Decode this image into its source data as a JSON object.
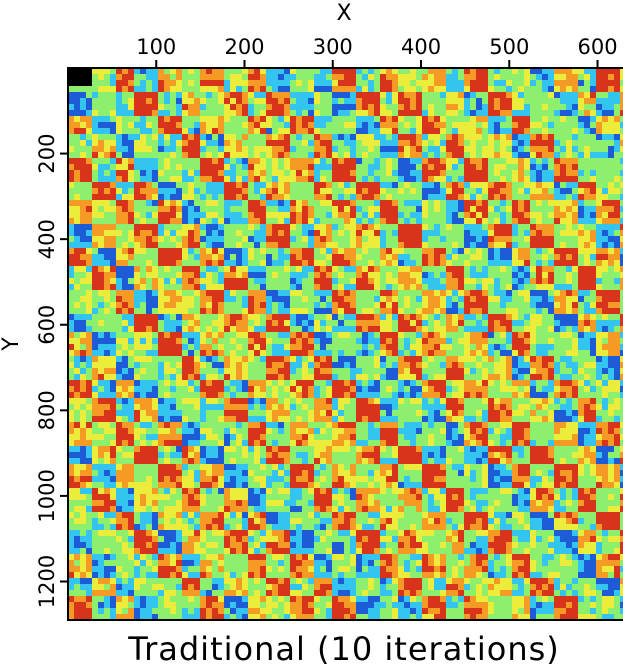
{
  "chart_data": {
    "type": "heatmap",
    "title": "Traditional (10 iterations)",
    "xlabel": "X",
    "ylabel": "Y",
    "x_axis_position": "top",
    "xlim": [
      0,
      630
    ],
    "ylim": [
      0,
      1290
    ],
    "y_direction": "downward",
    "x_ticks": [
      100,
      200,
      300,
      400,
      500,
      600
    ],
    "y_ticks": [
      200,
      400,
      600,
      800,
      1000,
      1200
    ],
    "colormap": [
      "#1e5bd6",
      "#33c4ef",
      "#8cef6e",
      "#ecec3a",
      "#f59a25",
      "#d8341b"
    ],
    "pattern": "checkerboard blocks with diagonal streaks, noisy texture",
    "grid": false
  }
}
